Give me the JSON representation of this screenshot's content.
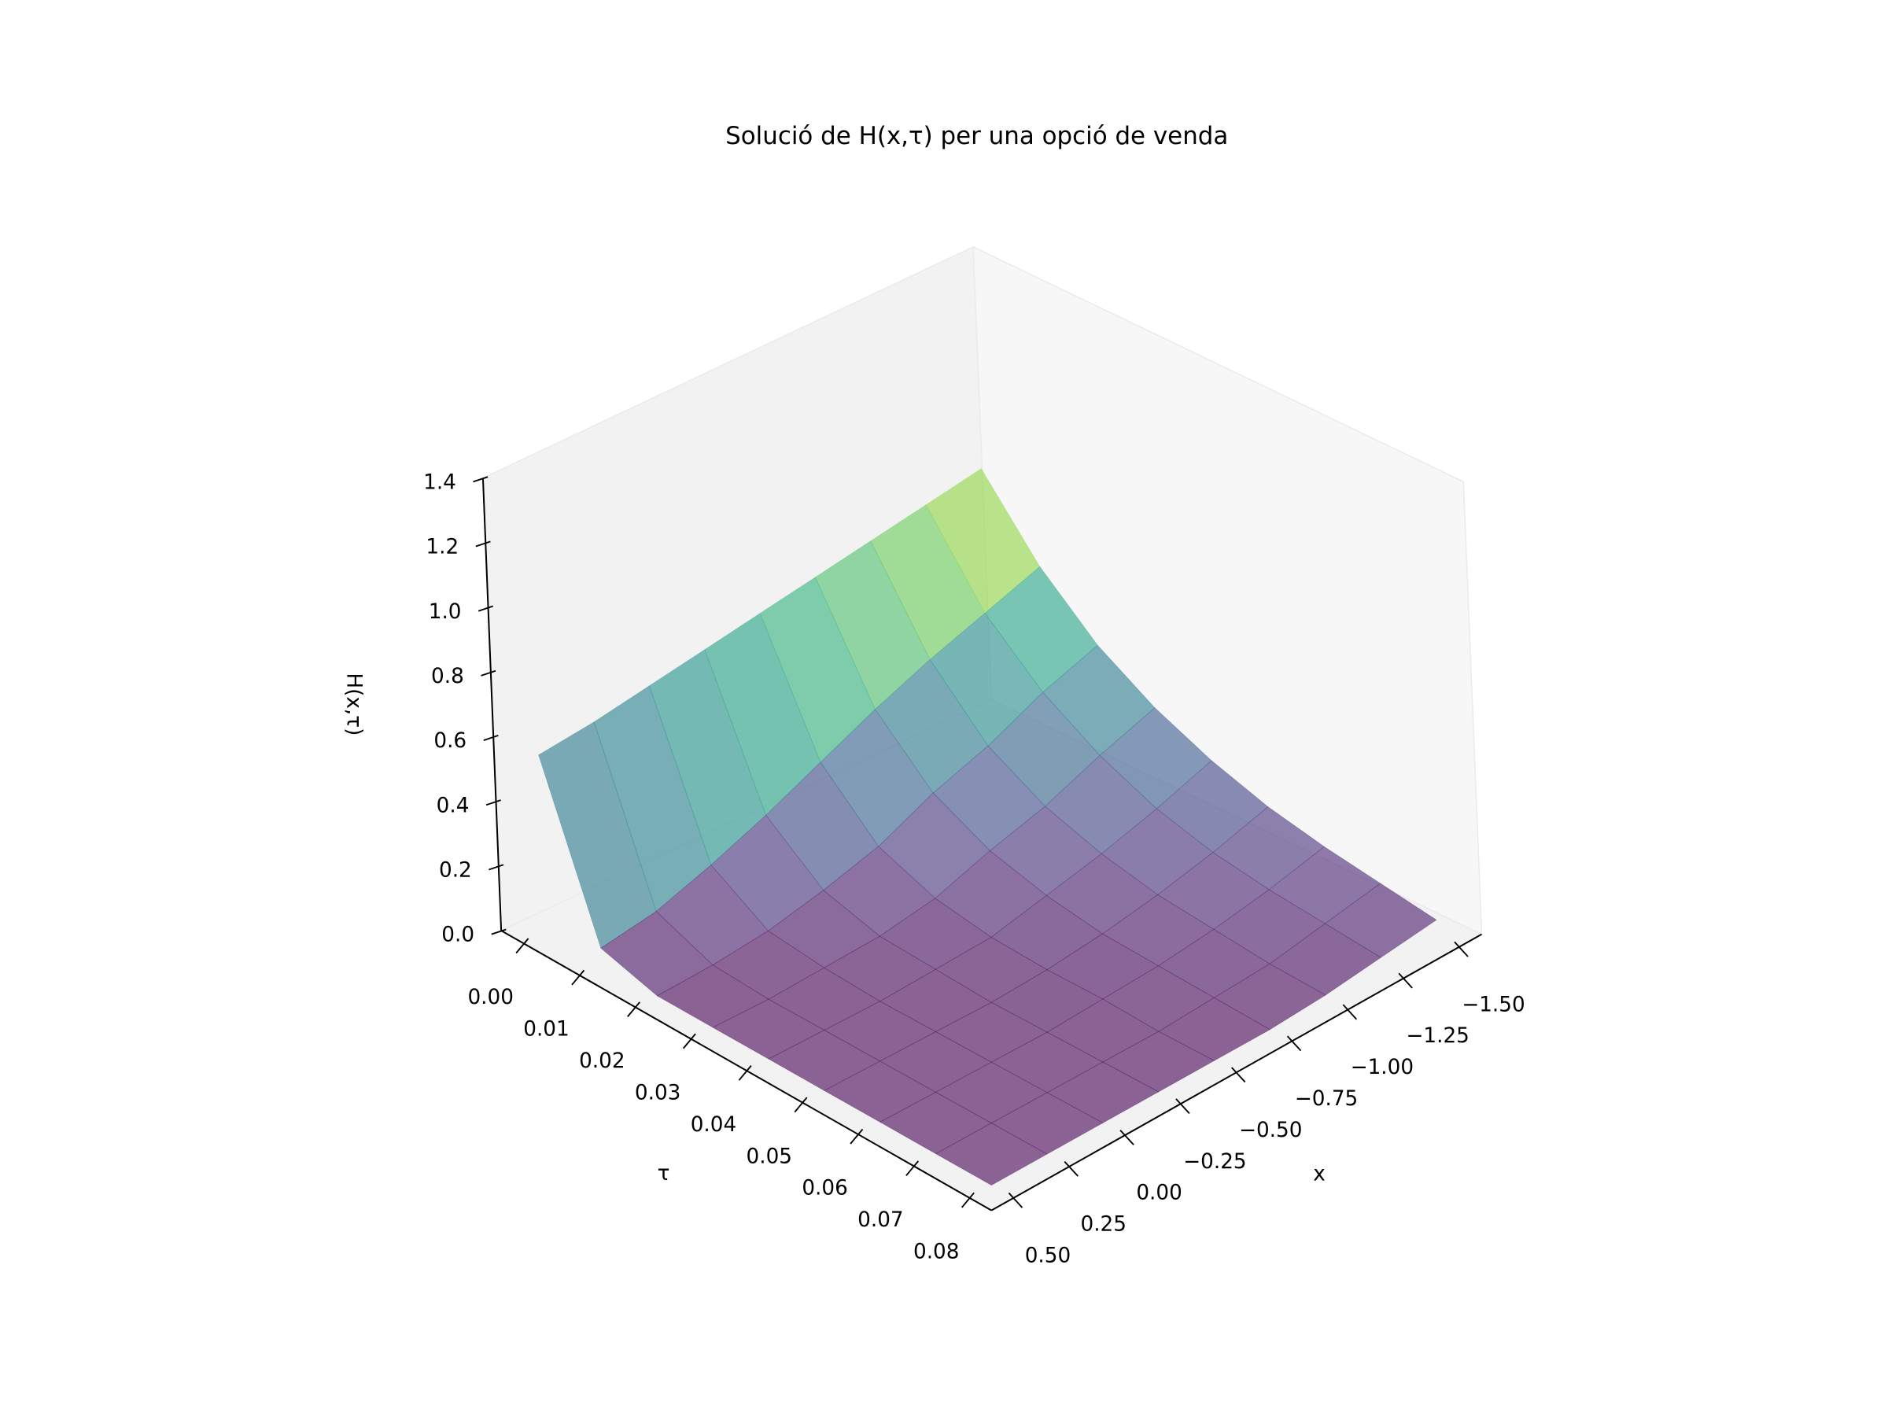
{
  "chart_data": {
    "type": "surface",
    "title": "Solució de H(x,τ) per una opció de venda",
    "xlabel": "x",
    "ylabel": "τ",
    "zlabel": "H(x,τ)",
    "x": [
      -1.5,
      -1.25,
      -1.0,
      -0.75,
      -0.5,
      -0.25,
      0.0,
      0.25,
      0.5
    ],
    "y": [
      0.0,
      0.01,
      0.02,
      0.03,
      0.04,
      0.05,
      0.06,
      0.07,
      0.08
    ],
    "z": [
      [
        0.78,
        0.75,
        0.72,
        0.69,
        0.66,
        0.63,
        0.6,
        0.57,
        0.55
      ],
      [
        0.56,
        0.5,
        0.44,
        0.37,
        0.29,
        0.21,
        0.14,
        0.08,
        0.05
      ],
      [
        0.4,
        0.34,
        0.26,
        0.2,
        0.12,
        0.07,
        0.03,
        0.01,
        0.0
      ],
      [
        0.29,
        0.23,
        0.16,
        0.11,
        0.05,
        0.02,
        0.01,
        0.0,
        0.0
      ],
      [
        0.21,
        0.15,
        0.1,
        0.06,
        0.02,
        0.01,
        0.0,
        0.0,
        0.0
      ],
      [
        0.15,
        0.1,
        0.06,
        0.03,
        0.01,
        0.0,
        0.0,
        0.0,
        0.0
      ],
      [
        0.11,
        0.07,
        0.04,
        0.02,
        0.01,
        0.0,
        0.0,
        0.0,
        0.0
      ],
      [
        0.08,
        0.05,
        0.02,
        0.01,
        0.0,
        0.0,
        0.0,
        0.0,
        0.0
      ],
      [
        0.05,
        0.03,
        0.01,
        0.0,
        0.0,
        0.0,
        0.0,
        0.0,
        0.0
      ]
    ],
    "xlim": [
      -1.6,
      0.6
    ],
    "ylim": [
      -0.004,
      0.084
    ],
    "zlim": [
      0,
      1.4
    ],
    "xticks": [
      {
        "value": -1.5,
        "label": "−1.50"
      },
      {
        "value": -1.25,
        "label": "−1.25"
      },
      {
        "value": -1.0,
        "label": "−1.00"
      },
      {
        "value": -0.75,
        "label": "−0.75"
      },
      {
        "value": -0.5,
        "label": "−0.50"
      },
      {
        "value": -0.25,
        "label": "−0.25"
      },
      {
        "value": 0.0,
        "label": "0.00"
      },
      {
        "value": 0.25,
        "label": "0.25"
      },
      {
        "value": 0.5,
        "label": "0.50"
      }
    ],
    "yticks": [
      {
        "value": 0.0,
        "label": "0.00"
      },
      0.01,
      0.02,
      0.03,
      0.04,
      0.05,
      0.06,
      0.07,
      0.08
    ],
    "zticks": [
      {
        "value": 0.0,
        "label": "0.0"
      },
      0.2,
      0.4,
      0.6,
      0.8,
      {
        "value": 1.0,
        "label": "1.0"
      },
      1.2,
      1.4
    ]
  }
}
